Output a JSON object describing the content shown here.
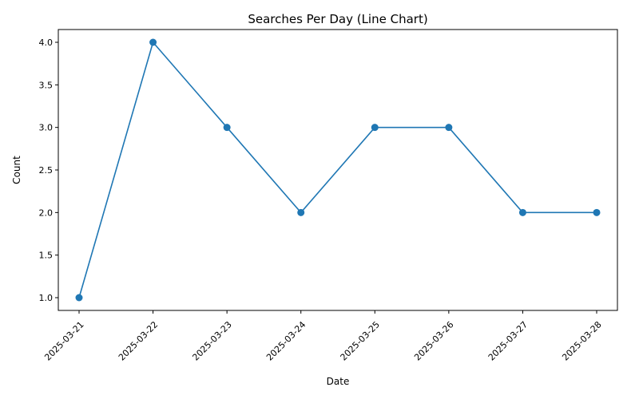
{
  "chart_data": {
    "type": "line",
    "title": "Searches Per Day (Line Chart)",
    "xlabel": "Date",
    "ylabel": "Count",
    "categories": [
      "2025-03-21",
      "2025-03-22",
      "2025-03-23",
      "2025-03-24",
      "2025-03-25",
      "2025-03-26",
      "2025-03-27",
      "2025-03-28"
    ],
    "values": [
      1,
      4,
      3,
      2,
      3,
      3,
      2,
      2
    ],
    "ylim": [
      0.85,
      4.15
    ],
    "yticks": [
      "1.0",
      "1.5",
      "2.0",
      "2.5",
      "3.0",
      "3.5",
      "4.0"
    ],
    "grid": false,
    "legend": "none",
    "line_color": "#1f77b4",
    "marker": "circle"
  }
}
